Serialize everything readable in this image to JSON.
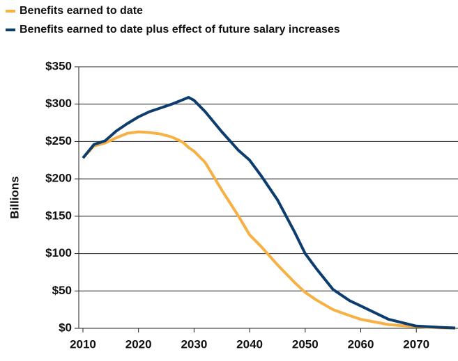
{
  "chart_data": {
    "type": "line",
    "legend": "top-left",
    "ylabel": "Billions",
    "grid": true,
    "x": [
      2010,
      2012,
      2014,
      2016,
      2018,
      2020,
      2022,
      2024,
      2026,
      2028,
      2029,
      2030,
      2032,
      2035,
      2038,
      2040,
      2042,
      2045,
      2048,
      2050,
      2052,
      2055,
      2058,
      2060,
      2065,
      2070,
      2075,
      2077
    ],
    "series": [
      {
        "name": "Benefits earned to date",
        "color": "#f7b043",
        "values": [
          228,
          244,
          248,
          255,
          261,
          263,
          262,
          260,
          256,
          249,
          242,
          237,
          222,
          185,
          150,
          125,
          110,
          85,
          62,
          48,
          38,
          25,
          17,
          12,
          5,
          2,
          0.5,
          0.3
        ]
      },
      {
        "name": "Benefits earned to date plus effect of future salary increases",
        "color": "#0d3c6e",
        "values": [
          228,
          246,
          251,
          264,
          274,
          283,
          290,
          295,
          300,
          306,
          309,
          305,
          290,
          263,
          238,
          225,
          205,
          172,
          130,
          100,
          80,
          52,
          37,
          30,
          12,
          3,
          1,
          0.5
        ]
      }
    ],
    "xlim": [
      2009.25,
      2077.5
    ],
    "ylim": [
      0,
      350
    ],
    "xticks": [
      2010,
      2020,
      2030,
      2040,
      2050,
      2060,
      2070
    ],
    "yticks": [
      {
        "value": 0,
        "label": "$0"
      },
      {
        "value": 50,
        "label": "$50"
      },
      {
        "value": 100,
        "label": "$100"
      },
      {
        "value": 150,
        "label": "$150"
      },
      {
        "value": 200,
        "label": "$200"
      },
      {
        "value": 250,
        "label": "$250"
      },
      {
        "value": 300,
        "label": "$300"
      },
      {
        "value": 350,
        "label": "$350"
      }
    ]
  }
}
